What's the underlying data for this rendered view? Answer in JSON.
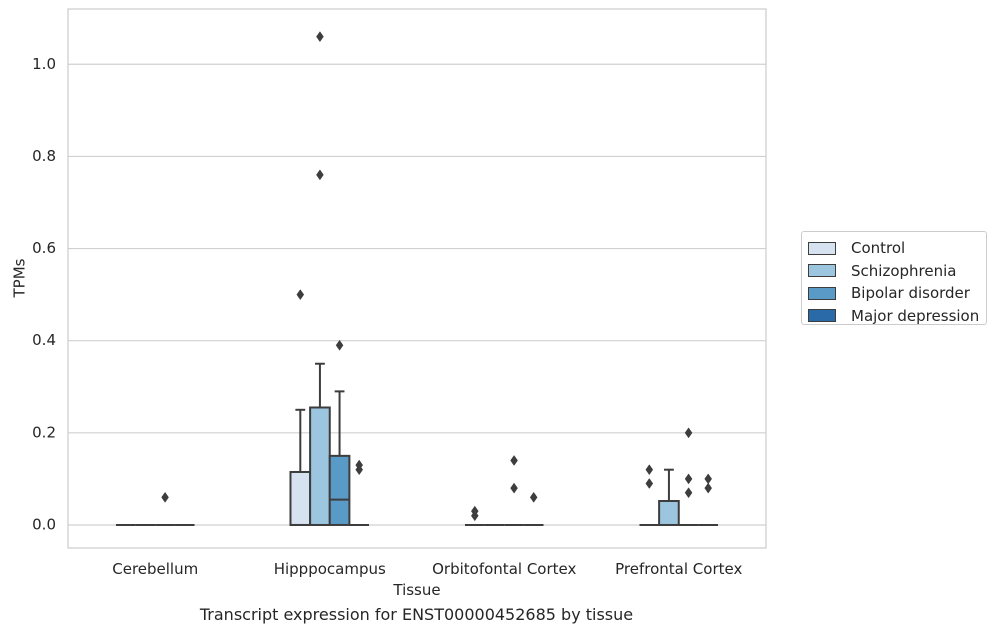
{
  "chart_data": {
    "type": "box",
    "xlabel": "Tissue",
    "ylabel": "TPMs",
    "caption": "Transcript expression for ENST00000452685 by tissue",
    "categories": [
      "Cerebellum",
      "Hipppocampus",
      "Orbitofontal Cortex",
      "Prefrontal Cortex"
    ],
    "ylim": [
      -0.05,
      1.12
    ],
    "yticks": [
      0.0,
      0.2,
      0.4,
      0.6,
      0.8,
      1.0
    ],
    "ytick_labels": [
      "0.0",
      "0.2",
      "0.4",
      "0.6",
      "0.8",
      "1.0"
    ],
    "grid": true,
    "legend_position": "right, outside plot",
    "series": [
      {
        "name": "Control",
        "color": "#d6e2f0",
        "boxes": [
          {
            "category": "Cerebellum",
            "whislo": 0,
            "q1": 0,
            "median": 0,
            "q3": 0,
            "whishi": 0,
            "fliers": []
          },
          {
            "category": "Hipppocampus",
            "whislo": 0,
            "q1": 0,
            "median": 0,
            "q3": 0.115,
            "whishi": 0.25,
            "fliers": [
              0.5
            ]
          },
          {
            "category": "Orbitofontal Cortex",
            "whislo": 0,
            "q1": 0,
            "median": 0,
            "q3": 0,
            "whishi": 0,
            "fliers": [
              0.02,
              0.03
            ]
          },
          {
            "category": "Prefrontal Cortex",
            "whislo": 0,
            "q1": 0,
            "median": 0,
            "q3": 0,
            "whishi": 0,
            "fliers": [
              0.09,
              0.12
            ]
          }
        ]
      },
      {
        "name": "Schizophrenia",
        "color": "#9cc6df",
        "boxes": [
          {
            "category": "Cerebellum",
            "whislo": 0,
            "q1": 0,
            "median": 0,
            "q3": 0,
            "whishi": 0,
            "fliers": []
          },
          {
            "category": "Hipppocampus",
            "whislo": 0,
            "q1": 0,
            "median": 0,
            "q3": 0.255,
            "whishi": 0.35,
            "fliers": [
              0.76,
              1.06
            ]
          },
          {
            "category": "Orbitofontal Cortex",
            "whislo": 0,
            "q1": 0,
            "median": 0,
            "q3": 0,
            "whishi": 0,
            "fliers": []
          },
          {
            "category": "Prefrontal Cortex",
            "whislo": 0,
            "q1": 0,
            "median": 0,
            "q3": 0.052,
            "whishi": 0.12,
            "fliers": []
          }
        ]
      },
      {
        "name": "Bipolar disorder",
        "color": "#5a9ac7",
        "boxes": [
          {
            "category": "Cerebellum",
            "whislo": 0,
            "q1": 0,
            "median": 0,
            "q3": 0,
            "whishi": 0,
            "fliers": [
              0.06
            ]
          },
          {
            "category": "Hipppocampus",
            "whislo": 0,
            "q1": 0,
            "median": 0.055,
            "q3": 0.15,
            "whishi": 0.29,
            "fliers": [
              0.39
            ]
          },
          {
            "category": "Orbitofontal Cortex",
            "whislo": 0,
            "q1": 0,
            "median": 0,
            "q3": 0,
            "whishi": 0,
            "fliers": [
              0.08,
              0.14
            ]
          },
          {
            "category": "Prefrontal Cortex",
            "whislo": 0,
            "q1": 0,
            "median": 0,
            "q3": 0,
            "whishi": 0,
            "fliers": [
              0.07,
              0.1,
              0.2
            ]
          }
        ]
      },
      {
        "name": "Major depression",
        "color": "#2a6aa8",
        "boxes": [
          {
            "category": "Cerebellum",
            "whislo": 0,
            "q1": 0,
            "median": 0,
            "q3": 0,
            "whishi": 0,
            "fliers": []
          },
          {
            "category": "Hipppocampus",
            "whislo": 0,
            "q1": 0,
            "median": 0,
            "q3": 0,
            "whishi": 0,
            "fliers": [
              0.12,
              0.13
            ]
          },
          {
            "category": "Orbitofontal Cortex",
            "whislo": 0,
            "q1": 0,
            "median": 0,
            "q3": 0,
            "whishi": 0,
            "fliers": [
              0.06
            ]
          },
          {
            "category": "Prefrontal Cortex",
            "whislo": 0,
            "q1": 0,
            "median": 0,
            "q3": 0,
            "whishi": 0,
            "fliers": [
              0.08,
              0.1
            ]
          }
        ]
      }
    ]
  }
}
